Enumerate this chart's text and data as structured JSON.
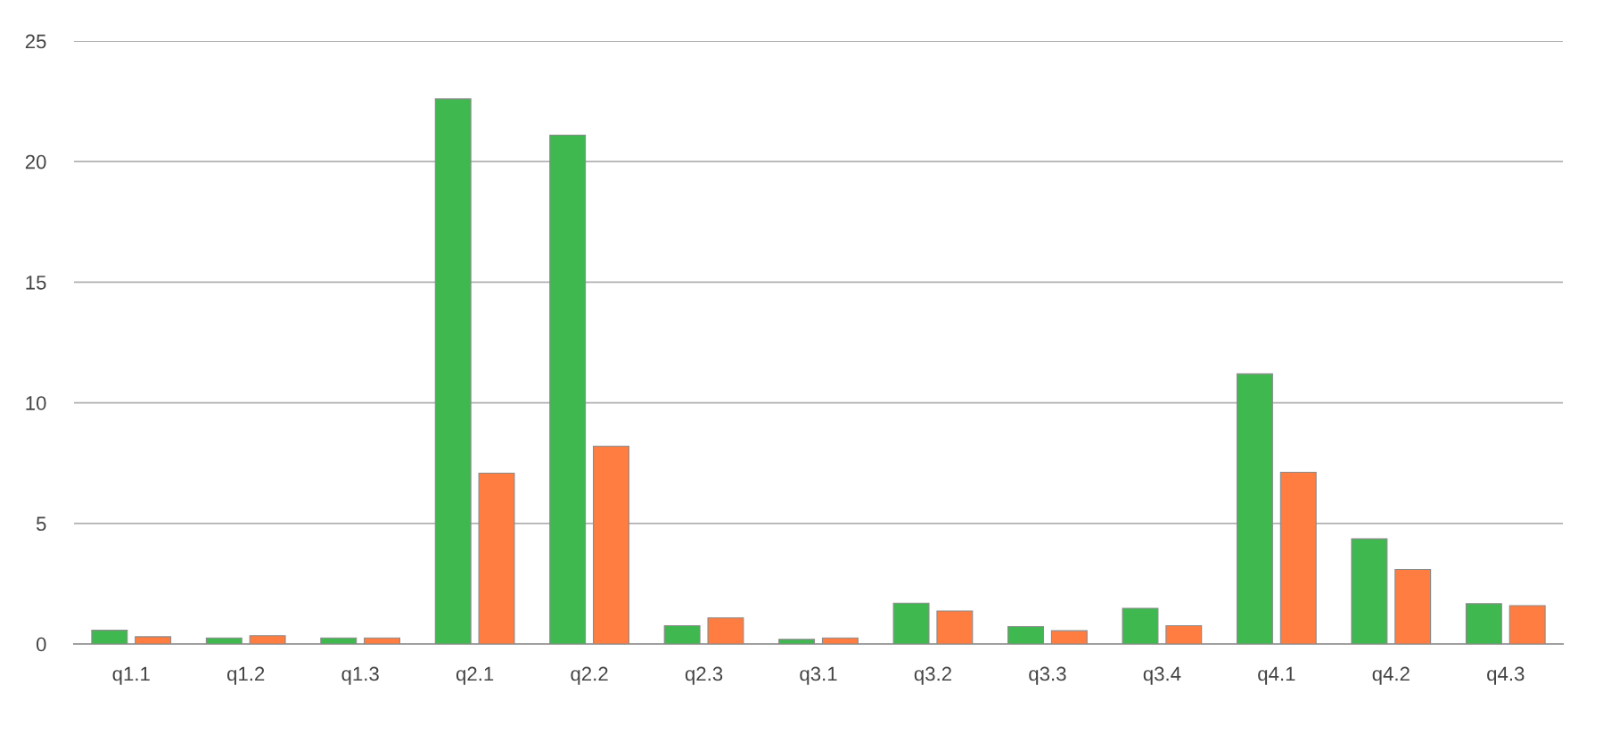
{
  "chart_data": {
    "type": "bar",
    "categories": [
      "q1.1",
      "q1.2",
      "q1.3",
      "q2.1",
      "q2.2",
      "q2.3",
      "q3.1",
      "q3.2",
      "q3.3",
      "q3.4",
      "q4.1",
      "q4.2",
      "q4.3"
    ],
    "series": [
      {
        "color": "#3fb850",
        "values": [
          0.57,
          0.25,
          0.25,
          22.6,
          21.1,
          0.76,
          0.19,
          1.69,
          0.72,
          1.48,
          11.2,
          4.36,
          1.67
        ]
      },
      {
        "color": "#ff7d40",
        "values": [
          0.3,
          0.34,
          0.25,
          7.08,
          8.2,
          1.08,
          0.25,
          1.37,
          0.55,
          0.76,
          7.12,
          3.09,
          1.59
        ]
      }
    ],
    "ylim": [
      0,
      25
    ],
    "yticks": [
      0,
      5,
      10,
      15,
      20,
      25
    ],
    "grid": "y"
  }
}
